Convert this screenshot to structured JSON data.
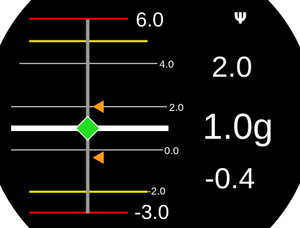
{
  "gmeter": {
    "scale_labels": {
      "max_limit": "6.0",
      "tick_4": "4.0",
      "tick_2": "2.0",
      "tick_0": "0.0",
      "tick_neg2": "-2.0",
      "min_limit": "-3.0"
    },
    "readouts": {
      "max_recorded": "2.0",
      "current": "1.0g",
      "min_recorded": "-0.4"
    },
    "icon": {
      "name": "psi-icon",
      "glyph": "Ψ"
    },
    "values": {
      "current_g": 1.0,
      "max_recorded_g": 2.0,
      "min_recorded_g": -0.4
    },
    "colors": {
      "background": "#000000",
      "limit_line": "#e00000",
      "caution_line": "#e8e800",
      "scale_line": "#ffffff",
      "needle": "#9a9a9a",
      "current_marker": "#22dd22",
      "peak_marker": "#ff9a1a"
    }
  }
}
